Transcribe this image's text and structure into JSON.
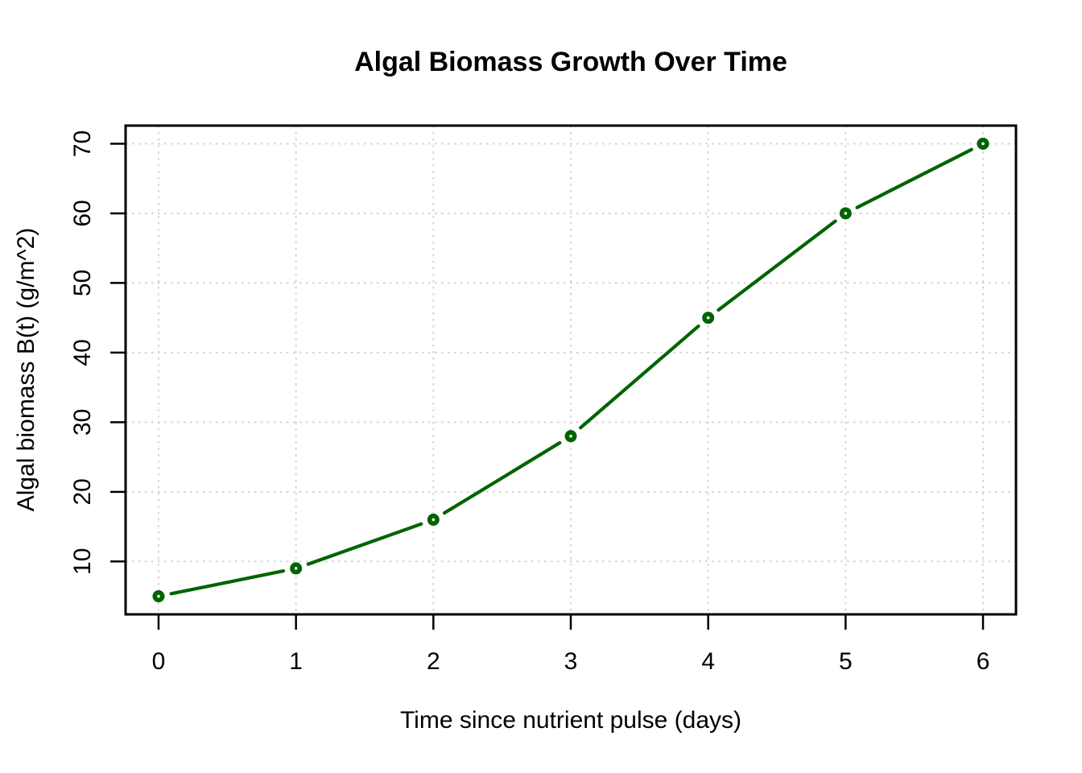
{
  "chart_data": {
    "type": "line",
    "title": "Algal Biomass Growth Over Time",
    "xlabel": "Time since nutrient pulse (days)",
    "ylabel": "Algal biomass B(t) (g/m^2)",
    "x": [
      0,
      1,
      2,
      3,
      4,
      5,
      6
    ],
    "series": [
      {
        "name": "Algal biomass B(t)",
        "values": [
          5,
          9,
          16,
          28,
          45,
          60,
          70
        ]
      }
    ],
    "xticks": [
      0,
      1,
      2,
      3,
      4,
      5,
      6
    ],
    "yticks": [
      10,
      20,
      30,
      40,
      50,
      60,
      70
    ],
    "xlim": [
      -0.24,
      6.24
    ],
    "ylim": [
      2.4,
      72.6
    ],
    "grid": true,
    "legend": false,
    "marker": "filled-circle-with-white-center",
    "line_style": "segments-with-gaps-around-points",
    "colors": {
      "line": "#006400",
      "marker": "#006400",
      "grid": "#d3d3d3",
      "axis": "#000000",
      "background": "#ffffff"
    }
  }
}
